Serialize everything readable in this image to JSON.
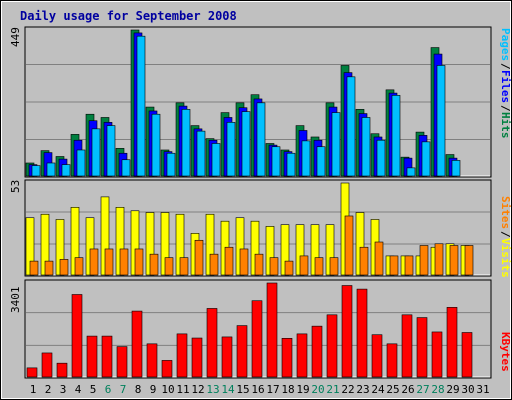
{
  "title": "Daily usage for September 2008",
  "colors": {
    "background": "#c0c0c0",
    "frame_text": "#0000a0",
    "hits": "#008040",
    "files": "#0000ff",
    "pages": "#00c0ff",
    "visits": "#ffff00",
    "sites": "#ff8000",
    "kbytes": "#ff0000"
  },
  "chart_data": [
    {
      "type": "bar",
      "panel": "hits-files-pages",
      "y_max_label": "449",
      "ylim": [
        0,
        449
      ],
      "grid": true,
      "legend": [
        "Pages",
        "/",
        "Files",
        "/",
        "Hits"
      ],
      "categories": [
        "1",
        "2",
        "3",
        "4",
        "5",
        "6",
        "7",
        "8",
        "9",
        "10",
        "11",
        "12",
        "13",
        "14",
        "15",
        "16",
        "17",
        "18",
        "19",
        "20",
        "21",
        "22",
        "23",
        "24",
        "25",
        "26",
        "27",
        "28",
        "29",
        "30",
        "31"
      ],
      "series": [
        {
          "name": "Hits",
          "values": [
            40,
            78,
            60,
            128,
            190,
            180,
            85,
            449,
            212,
            80,
            225,
            155,
            115,
            195,
            225,
            250,
            100,
            80,
            155,
            120,
            225,
            340,
            205,
            130,
            265,
            58,
            135,
            395,
            66,
            0,
            0
          ]
        },
        {
          "name": "Files",
          "values": [
            35,
            72,
            52,
            110,
            170,
            165,
            70,
            440,
            200,
            75,
            215,
            145,
            110,
            180,
            210,
            237,
            95,
            75,
            140,
            110,
            212,
            318,
            192,
            120,
            255,
            55,
            125,
            375,
            55,
            0,
            0
          ]
        },
        {
          "name": "Pages",
          "values": [
            32,
            40,
            35,
            80,
            145,
            155,
            50,
            430,
            190,
            70,
            205,
            138,
            100,
            165,
            198,
            225,
            90,
            70,
            108,
            90,
            195,
            305,
            180,
            110,
            248,
            25,
            105,
            340,
            48,
            0,
            0
          ]
        }
      ]
    },
    {
      "type": "bar",
      "panel": "visits-sites",
      "y_max_label": "53",
      "ylim": [
        0,
        53
      ],
      "grid": true,
      "legend": [
        "Sites",
        "/",
        "Visits"
      ],
      "categories": [
        "1",
        "2",
        "3",
        "4",
        "5",
        "6",
        "7",
        "8",
        "9",
        "10",
        "11",
        "12",
        "13",
        "14",
        "15",
        "16",
        "17",
        "18",
        "19",
        "20",
        "21",
        "22",
        "23",
        "24",
        "25",
        "26",
        "27",
        "28",
        "29",
        "30",
        "31"
      ],
      "series": [
        {
          "name": "Visits",
          "values": [
            33,
            35,
            32,
            39,
            33,
            45,
            39,
            37,
            36,
            36,
            35,
            24,
            35,
            31,
            33,
            31,
            28,
            29,
            29,
            29,
            29,
            53,
            36,
            32,
            11,
            11,
            11,
            16,
            18,
            17,
            0
          ]
        },
        {
          "name": "Sites",
          "values": [
            8,
            8,
            9,
            10,
            15,
            15,
            15,
            15,
            12,
            10,
            10,
            20,
            12,
            16,
            15,
            12,
            10,
            8,
            11,
            10,
            10,
            34,
            16,
            19,
            11,
            11,
            17,
            18,
            17,
            17,
            0
          ]
        }
      ]
    },
    {
      "type": "bar",
      "panel": "kbytes",
      "y_max_label": "3401",
      "ylim": [
        0,
        3401
      ],
      "grid": true,
      "legend": [
        "KBytes"
      ],
      "categories": [
        "1",
        "2",
        "3",
        "4",
        "5",
        "6",
        "7",
        "8",
        "9",
        "10",
        "11",
        "12",
        "13",
        "14",
        "15",
        "16",
        "17",
        "18",
        "19",
        "20",
        "21",
        "22",
        "23",
        "24",
        "25",
        "26",
        "27",
        "28",
        "29",
        "30",
        "31"
      ],
      "series": [
        {
          "name": "KBytes",
          "values": [
            330,
            870,
            500,
            2985,
            1480,
            1480,
            1100,
            2385,
            1200,
            600,
            1560,
            1410,
            2480,
            1450,
            1860,
            2760,
            3401,
            1400,
            1560,
            1840,
            2250,
            3310,
            3180,
            1530,
            1200,
            2250,
            2150,
            1630,
            2520,
            1610,
            0
          ]
        }
      ]
    }
  ],
  "day_labels": [
    {
      "text": "1",
      "weekend": false
    },
    {
      "text": "2",
      "weekend": false
    },
    {
      "text": "3",
      "weekend": false
    },
    {
      "text": "4",
      "weekend": false
    },
    {
      "text": "5",
      "weekend": false
    },
    {
      "text": "6",
      "weekend": true
    },
    {
      "text": "7",
      "weekend": true
    },
    {
      "text": "8",
      "weekend": false
    },
    {
      "text": "9",
      "weekend": false
    },
    {
      "text": "10",
      "weekend": false
    },
    {
      "text": "11",
      "weekend": false
    },
    {
      "text": "12",
      "weekend": false
    },
    {
      "text": "13",
      "weekend": true
    },
    {
      "text": "14",
      "weekend": true
    },
    {
      "text": "15",
      "weekend": false
    },
    {
      "text": "16",
      "weekend": false
    },
    {
      "text": "17",
      "weekend": false
    },
    {
      "text": "18",
      "weekend": false
    },
    {
      "text": "19",
      "weekend": false
    },
    {
      "text": "20",
      "weekend": true
    },
    {
      "text": "21",
      "weekend": true
    },
    {
      "text": "22",
      "weekend": false
    },
    {
      "text": "23",
      "weekend": false
    },
    {
      "text": "24",
      "weekend": false
    },
    {
      "text": "25",
      "weekend": false
    },
    {
      "text": "26",
      "weekend": false
    },
    {
      "text": "27",
      "weekend": true
    },
    {
      "text": "28",
      "weekend": true
    },
    {
      "text": "29",
      "weekend": false
    },
    {
      "text": "30",
      "weekend": false
    },
    {
      "text": "31",
      "weekend": false
    }
  ],
  "label_colors": {
    "weekday": "#000000",
    "weekend": "#00805c"
  }
}
